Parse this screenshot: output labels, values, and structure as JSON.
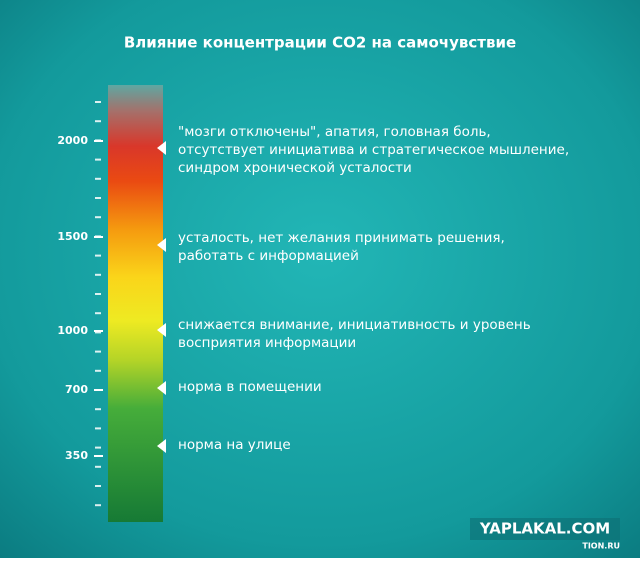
{
  "title": "Влияние концентрации CO2 на самочувствие",
  "scale": {
    "ticks": [
      "2000",
      "1500",
      "1000",
      "700",
      "350"
    ]
  },
  "notes": [
    {
      "lines": [
        "\"мозги отключены\", апатия, головная боль,",
        "отсутствует инициатива и стратегическое мышление,",
        "синдром хронической усталости"
      ]
    },
    {
      "lines": [
        "усталость, нет желания принимать решения,",
        "работать с информацией"
      ]
    },
    {
      "lines": [
        "снижается внимание, инициативность и уровень",
        "восприятия информации"
      ]
    },
    {
      "lines": [
        "норма в помещении"
      ]
    },
    {
      "lines": [
        "норма на улице"
      ]
    }
  ],
  "watermarks": {
    "site": "YAPLAKAL.COM",
    "source": "TION.RU"
  }
}
